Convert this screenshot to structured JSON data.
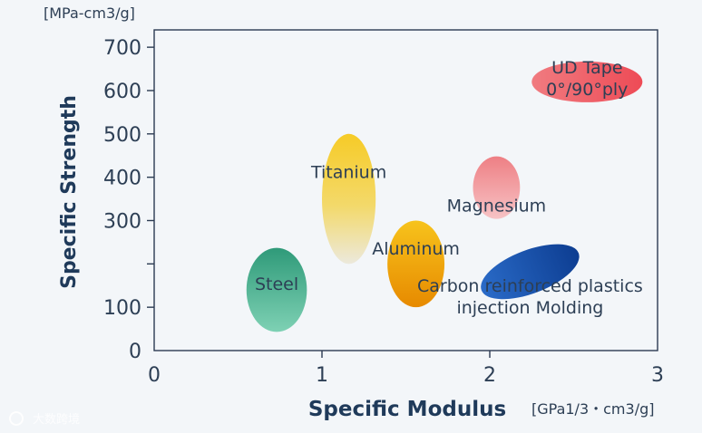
{
  "chart_data": {
    "type": "scatter",
    "title": "",
    "xlabel": "Specific Modulus",
    "ylabel": "Specific Strength",
    "x_unit": "[GPa1/3・cm3/g]",
    "y_unit": "[MPa-cm3/g]",
    "xlim": [
      0,
      3
    ],
    "ylim": [
      0,
      740
    ],
    "x_ticks": [
      "0",
      "1",
      "2",
      "3"
    ],
    "y_ticks": [
      "0",
      "100",
      "200",
      "300",
      "400",
      "500",
      "600",
      "700"
    ],
    "y_tick_labels_shown": [
      "0",
      "100",
      "300",
      "400",
      "500",
      "600",
      "700"
    ],
    "grid": false,
    "regions": [
      {
        "label": [
          "Steel"
        ],
        "center": [
          0.73,
          140
        ],
        "radius": [
          0.18,
          97
        ],
        "rotation_deg": 0,
        "colors": [
          "#2f9a79",
          "#7ed1b4"
        ]
      },
      {
        "label": [
          "Titanium"
        ],
        "center": [
          1.16,
          350
        ],
        "radius": [
          0.16,
          150
        ],
        "rotation_deg": 0,
        "colors": [
          "#f6cb27",
          "#ece9dc"
        ]
      },
      {
        "label": [
          "Aluminum"
        ],
        "center": [
          1.56,
          200
        ],
        "radius": [
          0.17,
          100
        ],
        "rotation_deg": 0,
        "colors": [
          "#f7c31c",
          "#e78a00"
        ]
      },
      {
        "label": [
          "Magnesium"
        ],
        "center": [
          2.04,
          376
        ],
        "radius": [
          0.14,
          72
        ],
        "rotation_deg": 0,
        "colors": [
          "#f08a8e",
          "#f6b8ba"
        ]
      },
      {
        "label": [
          "Carbon reinforced plastics",
          "injection Molding"
        ],
        "center": [
          2.24,
          182
        ],
        "radius": [
          0.31,
          50
        ],
        "rotation_deg": -21,
        "colors": [
          "#1d57b6",
          "#0f3f92"
        ]
      },
      {
        "label": [
          "UD Tape",
          "0°/90°ply"
        ],
        "center": [
          2.58,
          620
        ],
        "radius": [
          0.33,
          47
        ],
        "rotation_deg": 0,
        "colors": [
          "#f06a70",
          "#ef4f59"
        ]
      }
    ]
  },
  "watermark": "大数跨境",
  "colors": {
    "axis": "#2b3b52",
    "background": "#f3f6f9",
    "text": "#2d3f55",
    "axis_title": "#1f3a5a"
  }
}
